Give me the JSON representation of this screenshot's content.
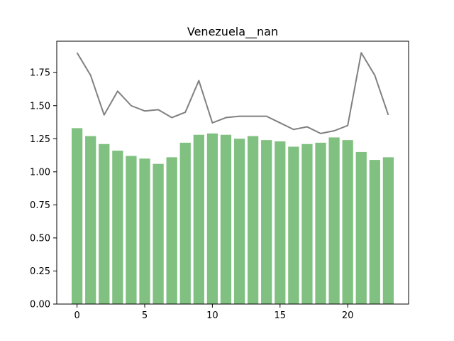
{
  "chart_data": {
    "type": "bar",
    "title": "Venezuela__nan",
    "xlabel": "",
    "ylabel": "",
    "x": [
      0,
      1,
      2,
      3,
      4,
      5,
      6,
      7,
      8,
      9,
      10,
      11,
      12,
      13,
      14,
      15,
      16,
      17,
      18,
      19,
      20,
      21,
      22,
      23
    ],
    "xlim": [
      -1.5,
      24.5
    ],
    "ylim": [
      0,
      1.9875
    ],
    "xticks": [
      0,
      5,
      10,
      15,
      20
    ],
    "xtick_labels": [
      "0",
      "5",
      "10",
      "15",
      "20"
    ],
    "yticks": [
      0,
      0.25,
      0.5,
      0.75,
      1.0,
      1.25,
      1.5,
      1.75
    ],
    "ytick_labels": [
      "0.00",
      "0.25",
      "0.50",
      "0.75",
      "1.00",
      "1.25",
      "1.50",
      "1.75"
    ],
    "grid": false,
    "series": [
      {
        "kind": "bar",
        "color": "#80c080",
        "values": [
          1.33,
          1.27,
          1.21,
          1.16,
          1.12,
          1.1,
          1.06,
          1.11,
          1.22,
          1.28,
          1.29,
          1.28,
          1.25,
          1.27,
          1.24,
          1.23,
          1.19,
          1.21,
          1.22,
          1.26,
          1.24,
          1.15,
          1.09,
          1.11
        ]
      },
      {
        "kind": "line",
        "color": "#808080",
        "values": [
          1.9,
          1.73,
          1.43,
          1.61,
          1.5,
          1.46,
          1.47,
          1.41,
          1.45,
          1.69,
          1.37,
          1.41,
          1.42,
          1.42,
          1.42,
          1.37,
          1.32,
          1.34,
          1.29,
          1.31,
          1.35,
          1.9,
          1.73,
          1.43
        ]
      }
    ]
  }
}
